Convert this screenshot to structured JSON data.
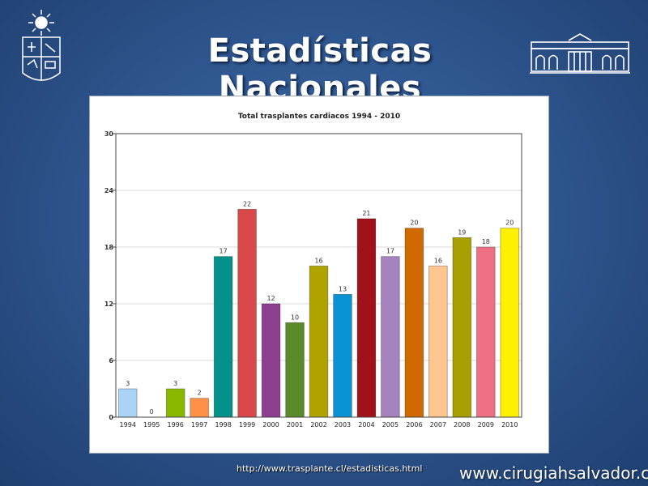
{
  "slide": {
    "title": "Estadísticas Nacionales",
    "source_url": "http://www.trasplante.cl/estadisticas.html",
    "site_url": "www.cirugiahsalvador.cl",
    "background_color": "#2f5790"
  },
  "icons": {
    "left_logo": "university-emblem-icon",
    "right_logo": "building-facade-icon"
  },
  "chart_data": {
    "type": "bar",
    "title": "Total trasplantes cardiacos 1994 - 2010",
    "xlabel": "",
    "ylabel": "",
    "categories": [
      "1994",
      "1995",
      "1996",
      "1997",
      "1998",
      "1999",
      "2000",
      "2001",
      "2002",
      "2003",
      "2004",
      "2005",
      "2006",
      "2007",
      "2008",
      "2009",
      "2010"
    ],
    "values": [
      3,
      0,
      3,
      2,
      17,
      22,
      12,
      10,
      16,
      13,
      21,
      17,
      20,
      16,
      19,
      18,
      20
    ],
    "colors": [
      "#aad4f5",
      "#8a8a8a",
      "#8ab800",
      "#ff9146",
      "#03918a",
      "#d9494a",
      "#8c3f8f",
      "#5a8a2a",
      "#b0a300",
      "#0a92d6",
      "#a0111a",
      "#a583bf",
      "#d06a00",
      "#ffc68f",
      "#a8a000",
      "#ef6f84",
      "#ffef00"
    ],
    "ylim": [
      0,
      30
    ],
    "yticks": [
      0,
      6,
      12,
      18,
      24,
      30
    ],
    "grid": true,
    "legend": "none"
  }
}
